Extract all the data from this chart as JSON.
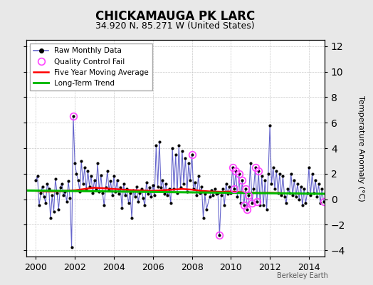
{
  "title": "CHICKAMAUGA PK LARC",
  "subtitle": "34.920 N, 85.271 W (United States)",
  "ylabel": "Temperature Anomaly (°C)",
  "watermark": "Berkeley Earth",
  "ylim": [
    -4.5,
    12.5
  ],
  "yticks": [
    -4,
    -2,
    0,
    2,
    4,
    6,
    8,
    10,
    12
  ],
  "xlim": [
    1999.5,
    2014.8
  ],
  "xticks": [
    2000,
    2002,
    2004,
    2006,
    2008,
    2010,
    2012,
    2014
  ],
  "bg_color": "#e8e8e8",
  "plot_bg_color": "#ffffff",
  "line_color": "#6666cc",
  "line_width": 0.8,
  "marker_color": "#000000",
  "marker_size": 3,
  "qc_color": "#ff44ff",
  "ma_color": "#ff0000",
  "trend_color": "#00bb00",
  "raw_data": [
    [
      2000.0,
      1.5
    ],
    [
      2000.083,
      1.8
    ],
    [
      2000.167,
      -0.5
    ],
    [
      2000.25,
      0.5
    ],
    [
      2000.333,
      1.0
    ],
    [
      2000.417,
      0.2
    ],
    [
      2000.5,
      -0.3
    ],
    [
      2000.583,
      1.2
    ],
    [
      2000.667,
      0.8
    ],
    [
      2000.75,
      -1.5
    ],
    [
      2000.833,
      0.3
    ],
    [
      2000.917,
      -1.0
    ],
    [
      2001.0,
      1.6
    ],
    [
      2001.083,
      0.5
    ],
    [
      2001.167,
      -0.8
    ],
    [
      2001.25,
      0.9
    ],
    [
      2001.333,
      1.2
    ],
    [
      2001.417,
      0.3
    ],
    [
      2001.5,
      0.6
    ],
    [
      2001.583,
      -0.2
    ],
    [
      2001.667,
      1.4
    ],
    [
      2001.75,
      0.1
    ],
    [
      2001.833,
      -3.8
    ],
    [
      2001.917,
      6.5
    ],
    [
      2002.0,
      2.8
    ],
    [
      2002.083,
      2.0
    ],
    [
      2002.167,
      1.5
    ],
    [
      2002.25,
      0.6
    ],
    [
      2002.333,
      3.0
    ],
    [
      2002.417,
      1.2
    ],
    [
      2002.5,
      2.5
    ],
    [
      2002.583,
      0.8
    ],
    [
      2002.667,
      2.2
    ],
    [
      2002.75,
      1.0
    ],
    [
      2002.833,
      1.8
    ],
    [
      2002.917,
      0.5
    ],
    [
      2003.0,
      1.5
    ],
    [
      2003.083,
      0.8
    ],
    [
      2003.167,
      2.8
    ],
    [
      2003.25,
      0.6
    ],
    [
      2003.333,
      1.9
    ],
    [
      2003.417,
      0.5
    ],
    [
      2003.5,
      -0.5
    ],
    [
      2003.583,
      0.9
    ],
    [
      2003.667,
      2.2
    ],
    [
      2003.75,
      0.7
    ],
    [
      2003.833,
      1.4
    ],
    [
      2003.917,
      0.3
    ],
    [
      2004.0,
      1.8
    ],
    [
      2004.083,
      0.6
    ],
    [
      2004.167,
      1.5
    ],
    [
      2004.25,
      0.4
    ],
    [
      2004.333,
      0.9
    ],
    [
      2004.417,
      -0.7
    ],
    [
      2004.5,
      1.2
    ],
    [
      2004.583,
      0.3
    ],
    [
      2004.667,
      0.8
    ],
    [
      2004.75,
      -0.3
    ],
    [
      2004.833,
      0.5
    ],
    [
      2004.917,
      -1.5
    ],
    [
      2005.0,
      0.7
    ],
    [
      2005.083,
      0.2
    ],
    [
      2005.167,
      1.0
    ],
    [
      2005.25,
      -0.2
    ],
    [
      2005.333,
      0.5
    ],
    [
      2005.417,
      0.8
    ],
    [
      2005.5,
      0.1
    ],
    [
      2005.583,
      -0.5
    ],
    [
      2005.667,
      1.3
    ],
    [
      2005.75,
      0.4
    ],
    [
      2005.833,
      0.9
    ],
    [
      2005.917,
      0.2
    ],
    [
      2006.0,
      1.1
    ],
    [
      2006.083,
      0.3
    ],
    [
      2006.167,
      4.2
    ],
    [
      2006.25,
      1.0
    ],
    [
      2006.333,
      4.5
    ],
    [
      2006.417,
      0.9
    ],
    [
      2006.5,
      1.5
    ],
    [
      2006.583,
      0.4
    ],
    [
      2006.667,
      1.2
    ],
    [
      2006.75,
      0.3
    ],
    [
      2006.833,
      0.8
    ],
    [
      2006.917,
      -0.3
    ],
    [
      2007.0,
      4.0
    ],
    [
      2007.083,
      0.8
    ],
    [
      2007.167,
      3.5
    ],
    [
      2007.25,
      0.5
    ],
    [
      2007.333,
      4.2
    ],
    [
      2007.417,
      0.9
    ],
    [
      2007.5,
      3.8
    ],
    [
      2007.583,
      1.2
    ],
    [
      2007.667,
      3.2
    ],
    [
      2007.75,
      0.6
    ],
    [
      2007.833,
      2.8
    ],
    [
      2007.917,
      1.5
    ],
    [
      2008.0,
      3.5
    ],
    [
      2008.083,
      0.8
    ],
    [
      2008.167,
      1.3
    ],
    [
      2008.25,
      0.3
    ],
    [
      2008.333,
      1.8
    ],
    [
      2008.417,
      0.5
    ],
    [
      2008.5,
      1.0
    ],
    [
      2008.583,
      -1.5
    ],
    [
      2008.667,
      0.4
    ],
    [
      2008.75,
      -0.8
    ],
    [
      2008.917,
      0.2
    ],
    [
      2009.0,
      0.7
    ],
    [
      2009.083,
      0.3
    ],
    [
      2009.167,
      0.8
    ],
    [
      2009.25,
      0.4
    ],
    [
      2009.333,
      0.5
    ],
    [
      2009.417,
      -2.8
    ],
    [
      2009.5,
      0.3
    ],
    [
      2009.583,
      0.8
    ],
    [
      2009.667,
      -0.5
    ],
    [
      2009.75,
      1.2
    ],
    [
      2009.833,
      0.4
    ],
    [
      2009.917,
      1.0
    ],
    [
      2010.0,
      0.5
    ],
    [
      2010.083,
      2.5
    ],
    [
      2010.167,
      0.8
    ],
    [
      2010.25,
      2.2
    ],
    [
      2010.333,
      0.2
    ],
    [
      2010.417,
      2.0
    ],
    [
      2010.5,
      -0.3
    ],
    [
      2010.583,
      1.5
    ],
    [
      2010.667,
      -0.5
    ],
    [
      2010.75,
      0.8
    ],
    [
      2010.833,
      -0.8
    ],
    [
      2010.917,
      0.3
    ],
    [
      2011.0,
      2.8
    ],
    [
      2011.083,
      -0.3
    ],
    [
      2011.167,
      0.8
    ],
    [
      2011.25,
      2.5
    ],
    [
      2011.333,
      -0.2
    ],
    [
      2011.417,
      2.2
    ],
    [
      2011.5,
      -0.5
    ],
    [
      2011.583,
      1.8
    ],
    [
      2011.667,
      -0.5
    ],
    [
      2011.75,
      1.5
    ],
    [
      2011.833,
      -0.8
    ],
    [
      2011.917,
      2.0
    ],
    [
      2012.0,
      5.8
    ],
    [
      2012.083,
      1.2
    ],
    [
      2012.167,
      2.5
    ],
    [
      2012.25,
      0.8
    ],
    [
      2012.333,
      2.2
    ],
    [
      2012.417,
      0.5
    ],
    [
      2012.5,
      2.0
    ],
    [
      2012.583,
      0.3
    ],
    [
      2012.667,
      1.8
    ],
    [
      2012.75,
      0.2
    ],
    [
      2012.833,
      -0.3
    ],
    [
      2012.917,
      0.8
    ],
    [
      2013.0,
      0.5
    ],
    [
      2013.083,
      2.0
    ],
    [
      2013.167,
      0.3
    ],
    [
      2013.25,
      1.5
    ],
    [
      2013.333,
      0.2
    ],
    [
      2013.417,
      1.2
    ],
    [
      2013.5,
      0.0
    ],
    [
      2013.583,
      1.0
    ],
    [
      2013.667,
      -0.5
    ],
    [
      2013.75,
      0.8
    ],
    [
      2013.833,
      -0.3
    ],
    [
      2013.917,
      0.5
    ],
    [
      2014.0,
      2.5
    ],
    [
      2014.083,
      0.3
    ],
    [
      2014.167,
      2.0
    ],
    [
      2014.25,
      0.5
    ],
    [
      2014.333,
      1.5
    ],
    [
      2014.417,
      0.2
    ],
    [
      2014.5,
      1.2
    ],
    [
      2014.583,
      -0.3
    ],
    [
      2014.667,
      0.8
    ],
    [
      2014.75,
      -0.2
    ]
  ],
  "qc_fail_points": [
    [
      2001.917,
      6.5
    ],
    [
      2008.0,
      3.5
    ],
    [
      2009.417,
      -2.8
    ],
    [
      2010.083,
      2.5
    ],
    [
      2010.167,
      0.8
    ],
    [
      2010.25,
      2.2
    ],
    [
      2010.417,
      2.0
    ],
    [
      2010.583,
      1.5
    ],
    [
      2010.667,
      -0.5
    ],
    [
      2010.75,
      0.8
    ],
    [
      2010.833,
      -0.8
    ],
    [
      2010.917,
      0.3
    ],
    [
      2011.083,
      -0.3
    ],
    [
      2011.25,
      2.5
    ],
    [
      2011.333,
      -0.2
    ],
    [
      2011.417,
      2.2
    ],
    [
      2014.75,
      -0.2
    ]
  ],
  "moving_avg": [
    [
      2000.0,
      0.65
    ],
    [
      2000.5,
      0.6
    ],
    [
      2001.0,
      0.6
    ],
    [
      2001.5,
      0.65
    ],
    [
      2002.0,
      0.7
    ],
    [
      2002.5,
      0.8
    ],
    [
      2003.0,
      0.9
    ],
    [
      2003.5,
      0.85
    ],
    [
      2004.0,
      0.8
    ],
    [
      2004.5,
      0.75
    ],
    [
      2005.0,
      0.7
    ],
    [
      2005.5,
      0.68
    ],
    [
      2006.0,
      0.65
    ],
    [
      2006.5,
      0.7
    ],
    [
      2007.0,
      0.75
    ],
    [
      2007.5,
      0.8
    ],
    [
      2008.0,
      0.75
    ],
    [
      2008.5,
      0.65
    ],
    [
      2009.0,
      0.6
    ],
    [
      2009.5,
      0.58
    ],
    [
      2010.0,
      0.6
    ],
    [
      2010.5,
      0.55
    ],
    [
      2011.0,
      0.5
    ],
    [
      2011.5,
      0.48
    ],
    [
      2012.0,
      0.5
    ],
    [
      2012.5,
      0.48
    ],
    [
      2013.0,
      0.45
    ],
    [
      2013.5,
      0.42
    ]
  ],
  "trend_x": [
    1999.5,
    2014.8
  ],
  "trend_y": [
    0.68,
    0.42
  ]
}
